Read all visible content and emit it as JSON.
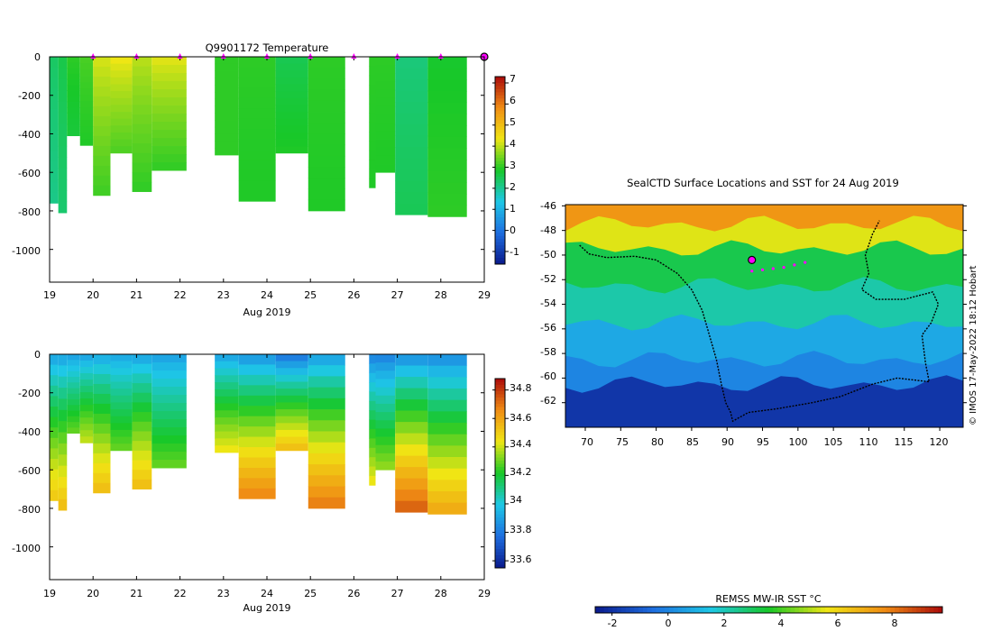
{
  "figure": {
    "temperature_panel": {
      "title": "Q9901172  Temperature",
      "x_label": "Aug 2019",
      "x_ticks": [
        "19",
        "20",
        "21",
        "22",
        "23",
        "24",
        "25",
        "26",
        "27",
        "28",
        "29"
      ],
      "y_ticks": [
        "0",
        "-200",
        "-400",
        "-600",
        "-800",
        "-1000"
      ],
      "colorbar_ticks": [
        "7",
        "6",
        "5",
        "4",
        "3",
        "2",
        "1",
        "0",
        "-1"
      ]
    },
    "salinity_panel": {
      "x_label": "Aug 2019",
      "x_ticks": [
        "19",
        "20",
        "21",
        "22",
        "23",
        "24",
        "25",
        "26",
        "27",
        "28",
        "29"
      ],
      "y_ticks": [
        "0",
        "-200",
        "-400",
        "-600",
        "-800",
        "-1000"
      ],
      "colorbar_ticks": [
        "34.8",
        "34.6",
        "34.4",
        "34.2",
        "34",
        "33.8",
        "33.6"
      ]
    },
    "map_panel": {
      "title": "SealCTD Surface Locations and SST for 24 Aug 2019",
      "x_ticks": [
        "70",
        "75",
        "80",
        "85",
        "90",
        "95",
        "100",
        "105",
        "110",
        "115",
        "120"
      ],
      "y_ticks": [
        "-46",
        "-48",
        "-50",
        "-52",
        "-54",
        "-56",
        "-58",
        "-60",
        "-62"
      ],
      "credit": "© IMOS 17-May-2022 18:12 Hobart",
      "colorbar_title": "REMSS MW-IR SST °C",
      "colorbar_ticks": [
        "-2",
        "0",
        "2",
        "4",
        "6",
        "8"
      ]
    }
  },
  "colors": {
    "deep_blue": "#0a1a8c",
    "mid_blue": "#1e6ee0",
    "cyan": "#1ec8e6",
    "green": "#18c828",
    "yellow": "#f0e614",
    "orange": "#f08c14",
    "red": "#aa0a0a",
    "marker": "#ff00ff"
  },
  "chart_data": [
    {
      "type": "heatmap",
      "title": "Q9901172  Temperature",
      "xlabel": "Aug 2019",
      "ylabel": "",
      "x_unit": "day of Aug 2019",
      "xlim": [
        19,
        29
      ],
      "ylim": [
        -1170,
        0
      ],
      "colorbar": {
        "range": [
          -1.6,
          7.3
        ],
        "ticks": [
          7,
          6,
          5,
          4,
          3,
          2,
          1,
          0,
          -1
        ]
      },
      "profile_markers_x": [
        20,
        21,
        22,
        23,
        24,
        25,
        26,
        27,
        28
      ],
      "latest_marker_x": 29,
      "profiles": [
        {
          "x0": 19.0,
          "x1": 19.2,
          "depth": 760,
          "top": 2.4,
          "deep": 2.1
        },
        {
          "x0": 19.2,
          "x1": 19.4,
          "depth": 810,
          "top": 2.6,
          "deep": 2.3
        },
        {
          "x0": 19.4,
          "x1": 19.7,
          "depth": 410,
          "top": 3.0,
          "deep": 2.7
        },
        {
          "x0": 19.7,
          "x1": 20.0,
          "depth": 460,
          "top": 3.2,
          "deep": 2.9
        },
        {
          "x0": 20.0,
          "x1": 20.4,
          "depth": 720,
          "top": 4.2,
          "deep": 3.1
        },
        {
          "x0": 20.4,
          "x1": 20.9,
          "depth": 500,
          "top": 4.4,
          "deep": 3.2
        },
        {
          "x0": 20.9,
          "x1": 21.35,
          "depth": 700,
          "top": 4.0,
          "deep": 3.0
        },
        {
          "x0": 21.35,
          "x1": 22.15,
          "depth": 590,
          "top": 4.3,
          "deep": 3.0
        },
        {
          "x0": 22.8,
          "x1": 23.35,
          "depth": 510,
          "top": 3.0,
          "deep": 3.0
        },
        {
          "x0": 23.35,
          "x1": 24.2,
          "depth": 750,
          "top": 3.0,
          "deep": 2.9
        },
        {
          "x0": 24.2,
          "x1": 24.95,
          "depth": 500,
          "top": 2.5,
          "deep": 2.9
        },
        {
          "x0": 24.95,
          "x1": 25.8,
          "depth": 800,
          "top": 3.0,
          "deep": 2.9
        },
        {
          "x0": 26.35,
          "x1": 26.5,
          "depth": 680,
          "top": 3.0,
          "deep": 2.9
        },
        {
          "x0": 26.5,
          "x1": 26.95,
          "depth": 600,
          "top": 3.0,
          "deep": 2.9
        },
        {
          "x0": 26.95,
          "x1": 27.7,
          "depth": 820,
          "top": 2.2,
          "deep": 2.5
        },
        {
          "x0": 27.7,
          "x1": 28.6,
          "depth": 830,
          "top": 2.8,
          "deep": 3.0
        }
      ]
    },
    {
      "type": "heatmap",
      "title": "",
      "xlabel": "Aug 2019",
      "ylabel": "",
      "x_unit": "day of Aug 2019",
      "xlim": [
        19,
        29
      ],
      "ylim": [
        -1170,
        0
      ],
      "colorbar": {
        "range": [
          33.55,
          34.88
        ],
        "ticks": [
          34.8,
          34.6,
          34.4,
          34.2,
          34,
          33.8,
          33.6
        ]
      },
      "profiles": [
        {
          "x0": 19.0,
          "x1": 19.2,
          "depth": 760,
          "top": 33.88,
          "deep": 34.52
        },
        {
          "x0": 19.2,
          "x1": 19.4,
          "depth": 810,
          "top": 33.88,
          "deep": 34.55
        },
        {
          "x0": 19.4,
          "x1": 19.7,
          "depth": 410,
          "top": 33.88,
          "deep": 34.3
        },
        {
          "x0": 19.7,
          "x1": 20.0,
          "depth": 460,
          "top": 33.88,
          "deep": 34.4
        },
        {
          "x0": 20.0,
          "x1": 20.4,
          "depth": 720,
          "top": 33.9,
          "deep": 34.55
        },
        {
          "x0": 20.4,
          "x1": 20.9,
          "depth": 500,
          "top": 33.9,
          "deep": 34.3
        },
        {
          "x0": 20.9,
          "x1": 21.35,
          "depth": 700,
          "top": 33.88,
          "deep": 34.55
        },
        {
          "x0": 21.35,
          "x1": 22.15,
          "depth": 590,
          "top": 33.88,
          "deep": 34.3
        },
        {
          "x0": 22.8,
          "x1": 23.35,
          "depth": 510,
          "top": 33.88,
          "deep": 34.45
        },
        {
          "x0": 23.35,
          "x1": 24.2,
          "depth": 750,
          "top": 33.84,
          "deep": 34.68
        },
        {
          "x0": 24.2,
          "x1": 24.95,
          "depth": 500,
          "top": 33.76,
          "deep": 34.55
        },
        {
          "x0": 24.95,
          "x1": 25.8,
          "depth": 800,
          "top": 33.86,
          "deep": 34.7
        },
        {
          "x0": 26.35,
          "x1": 26.5,
          "depth": 680,
          "top": 33.8,
          "deep": 34.45
        },
        {
          "x0": 26.5,
          "x1": 26.95,
          "depth": 600,
          "top": 33.8,
          "deep": 34.35
        },
        {
          "x0": 26.95,
          "x1": 27.7,
          "depth": 820,
          "top": 33.82,
          "deep": 34.75
        },
        {
          "x0": 27.7,
          "x1": 28.6,
          "depth": 830,
          "top": 33.82,
          "deep": 34.6
        }
      ]
    },
    {
      "type": "heatmap",
      "title": "SealCTD Surface Locations and SST for 24 Aug 2019",
      "xlabel": "",
      "ylabel": "",
      "x_unit": "longitude (°E)",
      "y_unit": "latitude (°)",
      "xlim": [
        67.2,
        123.3
      ],
      "ylim": [
        -64,
        -45.9
      ],
      "colorbar": {
        "title": "REMSS MW-IR SST °C",
        "range": [
          -2.6,
          9.8
        ],
        "ticks": [
          -2,
          0,
          2,
          4,
          6,
          8
        ]
      },
      "sst_bands": [
        {
          "lat_north": -45.9,
          "lat_south": -47.5,
          "sst": 7.5
        },
        {
          "lat_north": -47.5,
          "lat_south": -49.5,
          "sst": 5.5
        },
        {
          "lat_north": -49.5,
          "lat_south": -52.5,
          "sst": 3.2
        },
        {
          "lat_north": -52.5,
          "lat_south": -55.5,
          "sst": 2.2
        },
        {
          "lat_north": -55.5,
          "lat_south": -58.5,
          "sst": 0.8
        },
        {
          "lat_north": -58.5,
          "lat_south": -60.5,
          "sst": 0.0
        },
        {
          "lat_north": -60.5,
          "lat_south": -64.0,
          "sst": -1.9
        }
      ],
      "track": [
        [
          69.2,
          -49.2
        ],
        [
          70.5,
          -49.9
        ],
        [
          73,
          -50.2
        ],
        [
          77,
          -50.1
        ],
        [
          80,
          -50.4
        ],
        [
          83,
          -51.5
        ],
        [
          85,
          -52.8
        ],
        [
          86.5,
          -54.5
        ],
        [
          87.5,
          -56.5
        ],
        [
          88.5,
          -58.5
        ],
        [
          89.2,
          -60.5
        ],
        [
          89.8,
          -62
        ],
        [
          90.5,
          -62.8
        ],
        [
          90.8,
          -63.5
        ],
        [
          93,
          -62.8
        ],
        [
          97,
          -62.5
        ],
        [
          102,
          -62
        ],
        [
          106,
          -61.5
        ],
        [
          110.5,
          -60.5
        ],
        [
          114,
          -60
        ],
        [
          118.5,
          -60.3
        ],
        [
          118,
          -58.8
        ],
        [
          117.5,
          -56.5
        ],
        [
          118.8,
          -55.5
        ],
        [
          119.8,
          -54
        ],
        [
          119,
          -53
        ],
        [
          115,
          -53.6
        ],
        [
          111,
          -53.6
        ],
        [
          109,
          -52.8
        ],
        [
          110,
          -51.5
        ],
        [
          109.5,
          -50
        ],
        [
          110.5,
          -48.3
        ],
        [
          111.5,
          -47.2
        ]
      ],
      "surfacing_locations": [
        [
          93.5,
          -51.3
        ],
        [
          95,
          -51.2
        ],
        [
          96.5,
          -51.1
        ],
        [
          98,
          -51
        ],
        [
          99.5,
          -50.8
        ],
        [
          101,
          -50.6
        ]
      ],
      "latest_location": [
        93.5,
        -50.4
      ]
    }
  ]
}
